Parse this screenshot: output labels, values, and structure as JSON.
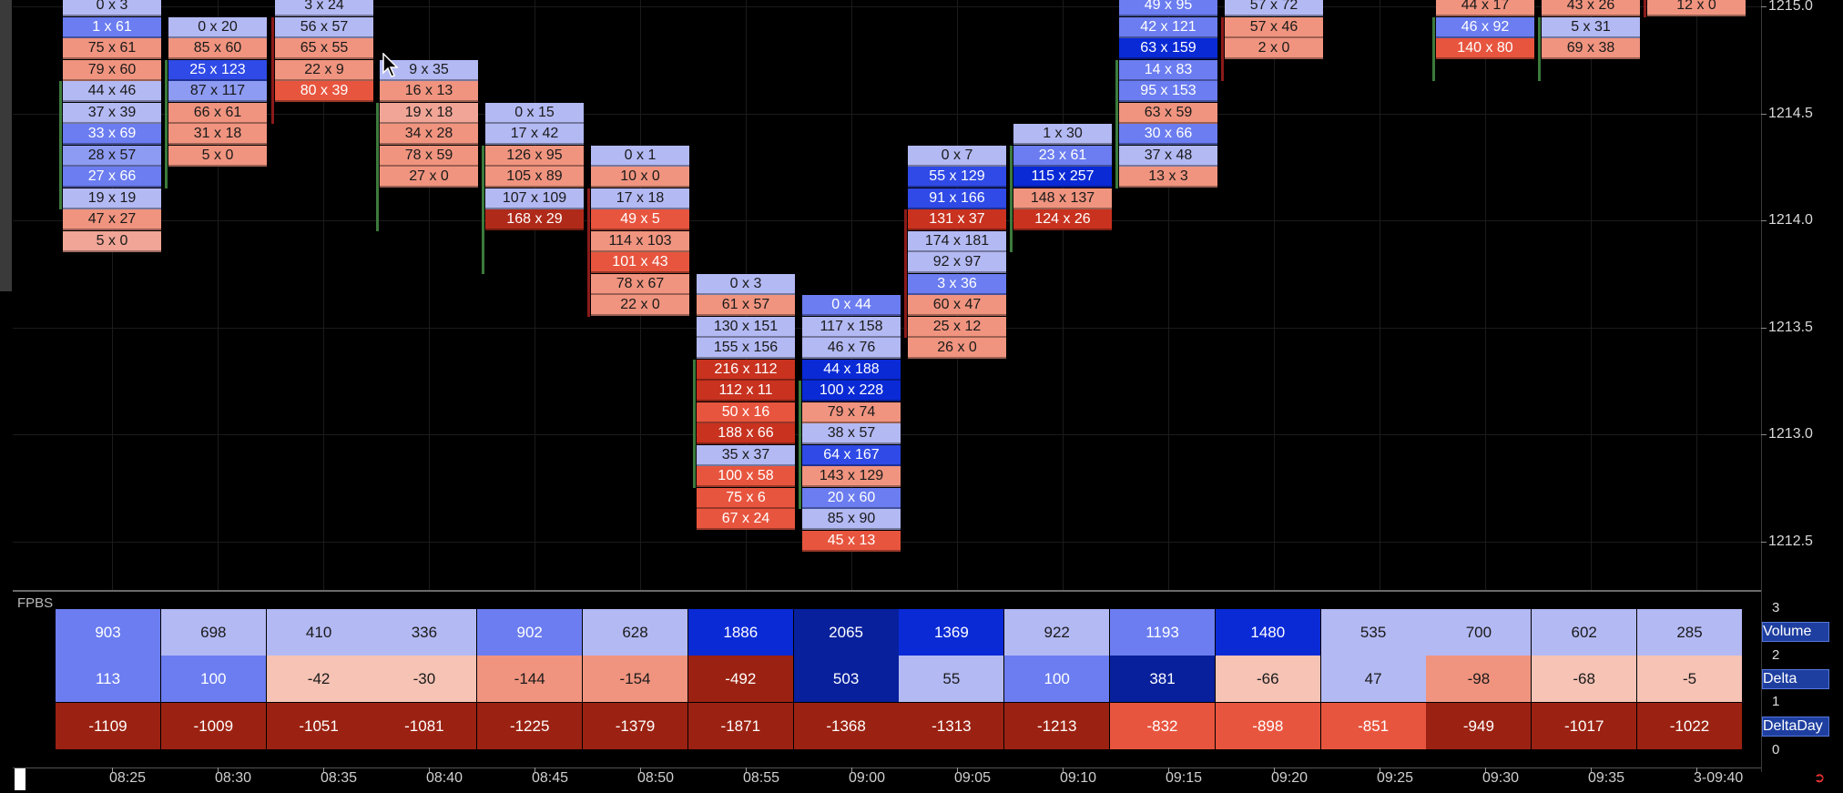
{
  "price_axis": {
    "levels": [
      "1215.0",
      "1214.5",
      "1214.0",
      "1213.5",
      "1213.0",
      "1212.5"
    ]
  },
  "footprint": {
    "columns": [
      {
        "time": "08:25",
        "cells": [
          {
            "t": "0 x 3",
            "c": "#b3b9f3"
          },
          {
            "t": "1 x 61",
            "c": "#6b7df0"
          },
          {
            "t": "75 x 61",
            "c": "#f0947f"
          },
          {
            "t": "79 x 60",
            "c": "#f0947f"
          },
          {
            "t": "44 x 46",
            "c": "#b3b9f3"
          },
          {
            "t": "37 x 39",
            "c": "#b3b9f3"
          },
          {
            "t": "33 x 69",
            "c": "#6b7df0"
          },
          {
            "t": "28 x 57",
            "c": "#8d9bf2"
          },
          {
            "t": "27 x 66",
            "c": "#6b7df0"
          },
          {
            "t": "19 x 19",
            "c": "#b3b9f3"
          },
          {
            "t": "47 x 27",
            "c": "#f0947f"
          },
          {
            "t": "5 x 0",
            "c": "#f0a596"
          }
        ]
      },
      {
        "time": "08:30",
        "cells": [
          {
            "t": "0 x 20",
            "c": "#b3b9f3"
          },
          {
            "t": "85 x 60",
            "c": "#f0947f"
          },
          {
            "t": "25 x 123",
            "c": "#2f4ae6"
          },
          {
            "t": "87 x 117",
            "c": "#8d9bf2"
          },
          {
            "t": "66 x 61",
            "c": "#f0947f"
          },
          {
            "t": "31 x 18",
            "c": "#f0947f"
          },
          {
            "t": "5 x 0",
            "c": "#f0947f"
          }
        ]
      },
      {
        "time": "08:35",
        "cells": [
          {
            "t": "3 x 24",
            "c": "#b3b9f3"
          },
          {
            "t": "56 x 57",
            "c": "#b3b9f3"
          },
          {
            "t": "65 x 55",
            "c": "#f0947f"
          },
          {
            "t": "22 x 9",
            "c": "#f0947f"
          },
          {
            "t": "80 x 39",
            "c": "#e8553e"
          }
        ]
      },
      {
        "time": "08:40",
        "cells": [
          {
            "t": "9 x 35",
            "c": "#b3b9f3"
          },
          {
            "t": "16 x 13",
            "c": "#f0947f"
          },
          {
            "t": "19 x 18",
            "c": "#f0a596"
          },
          {
            "t": "34 x 28",
            "c": "#f0947f"
          },
          {
            "t": "78 x 59",
            "c": "#f0947f"
          },
          {
            "t": "27 x 0",
            "c": "#f0947f"
          }
        ]
      },
      {
        "time": "08:45",
        "cells": [
          {
            "t": "0 x 15",
            "c": "#b3b9f3"
          },
          {
            "t": "17 x 42",
            "c": "#b3b9f3"
          },
          {
            "t": "126 x 95",
            "c": "#f0947f"
          },
          {
            "t": "105 x 89",
            "c": "#f0947f"
          },
          {
            "t": "107 x 109",
            "c": "#b3b9f3"
          },
          {
            "t": "168 x 29",
            "c": "#b02a1a"
          }
        ]
      },
      {
        "time": "08:50",
        "cells": [
          {
            "t": "0 x 1",
            "c": "#b3b9f3"
          },
          {
            "t": "10 x 0",
            "c": "#f0947f"
          },
          {
            "t": "17 x 18",
            "c": "#b3b9f3"
          },
          {
            "t": "49 x 5",
            "c": "#e8553e"
          },
          {
            "t": "114 x 103",
            "c": "#f0947f"
          },
          {
            "t": "101 x 43",
            "c": "#e8553e"
          },
          {
            "t": "78 x 67",
            "c": "#f0947f"
          },
          {
            "t": "22 x 0",
            "c": "#f0947f"
          }
        ]
      },
      {
        "time": "08:55",
        "cells": [
          {
            "t": "0 x 3",
            "c": "#b3b9f3"
          },
          {
            "t": "61 x 57",
            "c": "#f0947f"
          },
          {
            "t": "130 x 151",
            "c": "#b3b9f3"
          },
          {
            "t": "155 x 156",
            "c": "#b3b9f3"
          },
          {
            "t": "216 x 112",
            "c": "#c8321f"
          },
          {
            "t": "112 x 11",
            "c": "#c8321f"
          },
          {
            "t": "50 x 16",
            "c": "#e8553e"
          },
          {
            "t": "188 x 66",
            "c": "#c8321f"
          },
          {
            "t": "35 x 37",
            "c": "#b3b9f3"
          },
          {
            "t": "100 x 58",
            "c": "#e8553e"
          },
          {
            "t": "75 x 6",
            "c": "#e8553e"
          },
          {
            "t": "67 x 24",
            "c": "#e8553e"
          }
        ]
      },
      {
        "time": "09:00",
        "cells": [
          {
            "t": "0 x 44",
            "c": "#6b7df0"
          },
          {
            "t": "117 x 158",
            "c": "#b3b9f3"
          },
          {
            "t": "46 x 76",
            "c": "#b3b9f3"
          },
          {
            "t": "44 x 188",
            "c": "#0a2ad6"
          },
          {
            "t": "100 x 228",
            "c": "#0a2ad6"
          },
          {
            "t": "79 x 74",
            "c": "#f0947f"
          },
          {
            "t": "38 x 57",
            "c": "#b3b9f3"
          },
          {
            "t": "64 x 167",
            "c": "#2f4ae6"
          },
          {
            "t": "143 x 129",
            "c": "#f0947f"
          },
          {
            "t": "20 x 60",
            "c": "#6b7df0"
          },
          {
            "t": "85 x 90",
            "c": "#b3b9f3"
          },
          {
            "t": "45 x 13",
            "c": "#e8553e"
          }
        ]
      },
      {
        "time": "09:05",
        "cells": [
          {
            "t": "0 x 7",
            "c": "#b3b9f3"
          },
          {
            "t": "55 x 129",
            "c": "#2f4ae6"
          },
          {
            "t": "91 x 166",
            "c": "#2f4ae6"
          },
          {
            "t": "131 x 37",
            "c": "#c8321f"
          },
          {
            "t": "174 x 181",
            "c": "#b3b9f3"
          },
          {
            "t": "92 x 97",
            "c": "#b3b9f3"
          },
          {
            "t": "3 x 36",
            "c": "#6b7df0"
          },
          {
            "t": "60 x 47",
            "c": "#f0947f"
          },
          {
            "t": "25 x 12",
            "c": "#f0947f"
          },
          {
            "t": "26 x 0",
            "c": "#f0947f"
          }
        ]
      },
      {
        "time": "09:10",
        "cells": [
          {
            "t": "1 x 30",
            "c": "#b3b9f3"
          },
          {
            "t": "23 x 61",
            "c": "#6b7df0"
          },
          {
            "t": "115 x 257",
            "c": "#0a2ad6"
          },
          {
            "t": "148 x 137",
            "c": "#f0947f"
          },
          {
            "t": "124 x 26",
            "c": "#c8321f"
          }
        ]
      },
      {
        "time": "09:15",
        "cells": [
          {
            "t": "49 x 95",
            "c": "#6b7df0"
          },
          {
            "t": "42 x 121",
            "c": "#6b7df0"
          },
          {
            "t": "63 x 159",
            "c": "#0a2ad6"
          },
          {
            "t": "14 x 83",
            "c": "#6b7df0"
          },
          {
            "t": "95 x 153",
            "c": "#6b7df0"
          },
          {
            "t": "63 x 59",
            "c": "#f0947f"
          },
          {
            "t": "30 x 66",
            "c": "#6b7df0"
          },
          {
            "t": "37 x 48",
            "c": "#b3b9f3"
          },
          {
            "t": "13 x 3",
            "c": "#f0947f"
          }
        ]
      },
      {
        "time": "09:20",
        "cells": [
          {
            "t": "57 x 72",
            "c": "#b3b9f3"
          },
          {
            "t": "57 x 46",
            "c": "#f0947f"
          },
          {
            "t": "2 x 0",
            "c": "#f0947f"
          }
        ]
      },
      {
        "time": "09:30",
        "cells": [
          {
            "t": "44 x 17",
            "c": "#f0947f"
          },
          {
            "t": "46 x 92",
            "c": "#6b7df0"
          },
          {
            "t": "140 x 80",
            "c": "#e8553e"
          }
        ]
      },
      {
        "time": "09:35",
        "cells": [
          {
            "t": "43 x 26",
            "c": "#f0947f"
          },
          {
            "t": "5 x 31",
            "c": "#b3b9f3"
          },
          {
            "t": "69 x 38",
            "c": "#f0947f"
          }
        ]
      },
      {
        "time": "09:40",
        "cells": [
          {
            "t": "12 x 0",
            "c": "#f0947f"
          }
        ]
      }
    ]
  },
  "fpbs": {
    "label": "FPBS",
    "row_labels": [
      "Volume",
      "Delta",
      "DeltaDay"
    ],
    "scale": [
      "3",
      "2",
      "1",
      "0"
    ],
    "volume": [
      {
        "v": "903",
        "c": "#6b7df0"
      },
      {
        "v": "698",
        "c": "#b3b9f3"
      },
      {
        "v": "410",
        "c": "#b3b9f3"
      },
      {
        "v": "336",
        "c": "#b3b9f3"
      },
      {
        "v": "902",
        "c": "#6b7df0"
      },
      {
        "v": "628",
        "c": "#b3b9f3"
      },
      {
        "v": "1886",
        "c": "#0a2ad6"
      },
      {
        "v": "2065",
        "c": "#08209c"
      },
      {
        "v": "1369",
        "c": "#0a2ad6"
      },
      {
        "v": "922",
        "c": "#b3b9f3"
      },
      {
        "v": "1193",
        "c": "#6b7df0"
      },
      {
        "v": "1480",
        "c": "#0a2ad6"
      },
      {
        "v": "535",
        "c": "#b3b9f3"
      },
      {
        "v": "700",
        "c": "#b3b9f3"
      },
      {
        "v": "602",
        "c": "#b3b9f3"
      },
      {
        "v": "285",
        "c": "#b3b9f3"
      }
    ],
    "delta": [
      {
        "v": "113",
        "c": "#6b7df0"
      },
      {
        "v": "100",
        "c": "#6b7df0"
      },
      {
        "v": "-42",
        "c": "#f6c3b5"
      },
      {
        "v": "-30",
        "c": "#f6c3b5"
      },
      {
        "v": "-144",
        "c": "#f0947f"
      },
      {
        "v": "-154",
        "c": "#f0947f"
      },
      {
        "v": "-492",
        "c": "#9b2212"
      },
      {
        "v": "503",
        "c": "#08209c"
      },
      {
        "v": "55",
        "c": "#b3b9f3"
      },
      {
        "v": "100",
        "c": "#6b7df0"
      },
      {
        "v": "381",
        "c": "#08209c"
      },
      {
        "v": "-66",
        "c": "#f6c3b5"
      },
      {
        "v": "47",
        "c": "#b3b9f3"
      },
      {
        "v": "-98",
        "c": "#f0947f"
      },
      {
        "v": "-68",
        "c": "#f6c3b5"
      },
      {
        "v": "-5",
        "c": "#f6c3b5"
      }
    ],
    "delta_day": [
      {
        "v": "-1109",
        "c": "#9b2212"
      },
      {
        "v": "-1009",
        "c": "#9b2212"
      },
      {
        "v": "-1051",
        "c": "#9b2212"
      },
      {
        "v": "-1081",
        "c": "#9b2212"
      },
      {
        "v": "-1225",
        "c": "#9b2212"
      },
      {
        "v": "-1379",
        "c": "#9b2212"
      },
      {
        "v": "-1871",
        "c": "#9b2212"
      },
      {
        "v": "-1368",
        "c": "#9b2212"
      },
      {
        "v": "-1313",
        "c": "#9b2212"
      },
      {
        "v": "-1213",
        "c": "#9b2212"
      },
      {
        "v": "-832",
        "c": "#e8553e"
      },
      {
        "v": "-898",
        "c": "#e8553e"
      },
      {
        "v": "-851",
        "c": "#e8553e"
      },
      {
        "v": "-949",
        "c": "#9b2212"
      },
      {
        "v": "-1017",
        "c": "#9b2212"
      },
      {
        "v": "-1022",
        "c": "#9b2212"
      }
    ]
  },
  "time_axis": {
    "labels": [
      "08:25",
      "08:30",
      "08:35",
      "08:40",
      "08:45",
      "08:50",
      "08:55",
      "09:00",
      "09:05",
      "09:10",
      "09:15",
      "09:20",
      "09:25",
      "09:30",
      "09:35",
      "3-09:40"
    ]
  },
  "icons": {
    "corner": "arrow-exit-icon",
    "cursor": "mouse-pointer-icon"
  }
}
